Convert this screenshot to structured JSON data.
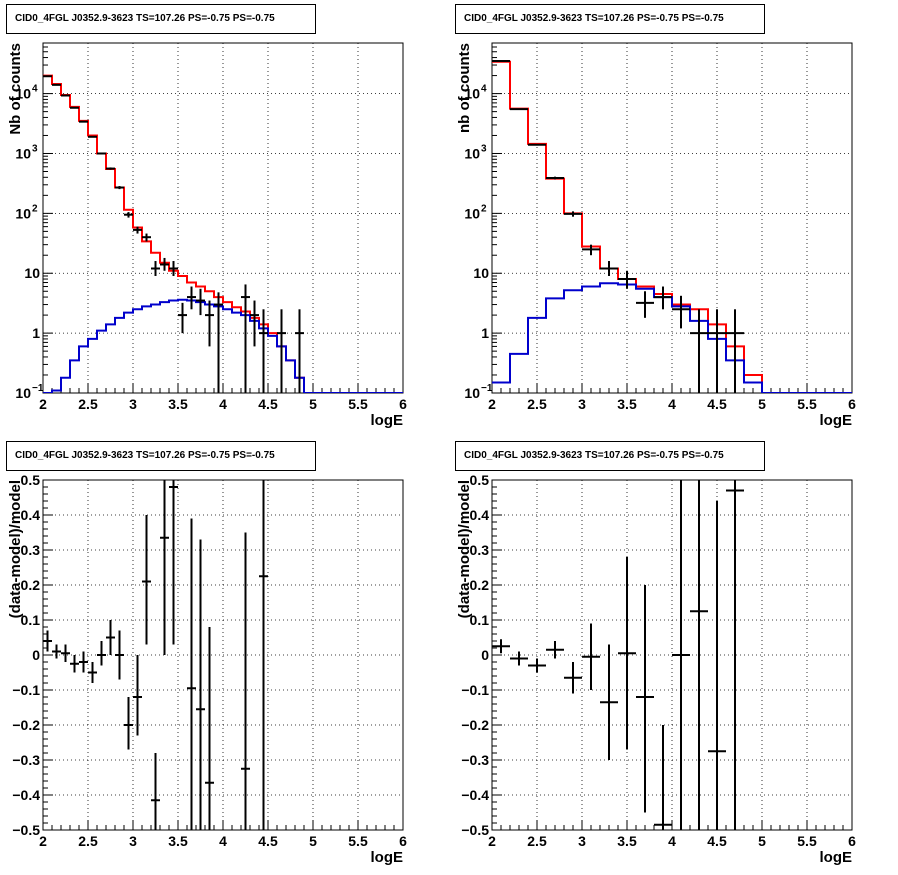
{
  "chart_data": [
    {
      "type": "line",
      "title": "CID0_4FGL J0352.9-3623 TS=107.26 PS=-0.75 PS=-0.75",
      "xlabel": "logE",
      "ylabel": "Nb of counts",
      "xlim": [
        2,
        6
      ],
      "ylim": [
        0.1,
        70000
      ],
      "yscale": "log",
      "grid": true,
      "x_ticks": [
        "2",
        "2.5",
        "3",
        "3.5",
        "4",
        "4.5",
        "5",
        "5.5",
        "6"
      ],
      "y_ticks": [
        {
          "value": 0.1,
          "label": "10",
          "exp": "−1"
        },
        {
          "value": 1,
          "label": "1",
          "exp": ""
        },
        {
          "value": 10,
          "label": "10",
          "exp": ""
        },
        {
          "value": 100,
          "label": "10",
          "exp": "2"
        },
        {
          "value": 1000,
          "label": "10",
          "exp": "3"
        },
        {
          "value": 10000,
          "label": "10",
          "exp": "4"
        }
      ],
      "bin_edges": [
        2.0,
        2.1,
        2.2,
        2.3,
        2.4,
        2.5,
        2.6,
        2.7,
        2.8,
        2.9,
        3.0,
        3.1,
        3.2,
        3.3,
        3.4,
        3.5,
        3.6,
        3.7,
        3.8,
        3.9,
        4.0,
        4.1,
        4.2,
        4.3,
        4.4,
        4.5,
        4.6,
        4.7,
        4.8,
        4.9,
        5.0,
        5.1,
        5.2,
        5.3,
        5.4,
        5.5,
        5.6,
        5.7,
        5.8,
        5.9,
        6.0
      ],
      "series": [
        {
          "color": "#ff0000",
          "style": "step",
          "values": [
            20000,
            14500,
            9500,
            6000,
            3500,
            2000,
            1000,
            550,
            270,
            115,
            58,
            34,
            22,
            15,
            11,
            9,
            7,
            6,
            5,
            4,
            3.3,
            2.7,
            2.3,
            1.8,
            1.4,
            1.0,
            0.6,
            0.35,
            0.18,
            0.1,
            0.09,
            0.09,
            0.09,
            0.09,
            0.09,
            0.09,
            0.09,
            0.09,
            0.09,
            0.09
          ]
        },
        {
          "color": "#0000cc",
          "style": "step",
          "values": [
            0.07,
            0.11,
            0.18,
            0.35,
            0.6,
            0.8,
            1.1,
            1.4,
            1.8,
            2.2,
            2.5,
            2.8,
            3.0,
            3.3,
            3.5,
            3.6,
            3.5,
            3.3,
            3.0,
            2.8,
            2.5,
            2.2,
            2.0,
            1.6,
            1.2,
            0.9,
            0.6,
            0.35,
            0.18,
            0.1,
            0.09,
            0.09,
            0.09,
            0.09,
            0.09,
            0.09,
            0.09,
            0.09,
            0.09,
            0.09
          ]
        }
      ],
      "points": [
        {
          "x": 2.05,
          "y": 19500,
          "lo": 19300,
          "hi": 19700
        },
        {
          "x": 2.15,
          "y": 14000,
          "lo": 13850,
          "hi": 14150
        },
        {
          "x": 2.25,
          "y": 9300,
          "lo": 9200,
          "hi": 9400
        },
        {
          "x": 2.35,
          "y": 5800,
          "lo": 5720,
          "hi": 5880
        },
        {
          "x": 2.45,
          "y": 3400,
          "lo": 3340,
          "hi": 3460
        },
        {
          "x": 2.55,
          "y": 1900,
          "lo": 1860,
          "hi": 1940
        },
        {
          "x": 2.65,
          "y": 1000,
          "lo": 970,
          "hi": 1030
        },
        {
          "x": 2.75,
          "y": 560,
          "lo": 535,
          "hi": 585
        },
        {
          "x": 2.85,
          "y": 270,
          "lo": 254,
          "hi": 286
        },
        {
          "x": 2.95,
          "y": 95,
          "lo": 85,
          "hi": 105
        },
        {
          "x": 3.05,
          "y": 53,
          "lo": 46,
          "hi": 60
        },
        {
          "x": 3.15,
          "y": 40,
          "lo": 34,
          "hi": 46
        },
        {
          "x": 3.25,
          "y": 12,
          "lo": 9,
          "hi": 16
        },
        {
          "x": 3.35,
          "y": 14,
          "lo": 11,
          "hi": 18
        },
        {
          "x": 3.45,
          "y": 12,
          "lo": 9,
          "hi": 16
        },
        {
          "x": 3.55,
          "y": 2,
          "lo": 1,
          "hi": 3.2
        },
        {
          "x": 3.65,
          "y": 4,
          "lo": 2.5,
          "hi": 6
        },
        {
          "x": 3.75,
          "y": 3.5,
          "lo": 2,
          "hi": 5.5
        },
        {
          "x": 3.85,
          "y": 2,
          "lo": 0.6,
          "hi": 3.5
        },
        {
          "x": 3.95,
          "y": 3,
          "lo": 0.1,
          "hi": 4.8
        },
        {
          "x": 4.25,
          "y": 4,
          "lo": 0.1,
          "hi": 6.5
        },
        {
          "x": 4.35,
          "y": 2,
          "lo": 0.6,
          "hi": 3.5
        },
        {
          "x": 4.45,
          "y": 1,
          "lo": 0.1,
          "hi": 2.5
        },
        {
          "x": 4.65,
          "y": 1,
          "lo": 0.1,
          "hi": 2.5
        },
        {
          "x": 4.85,
          "y": 1,
          "lo": 0.1,
          "hi": 2.5
        }
      ],
      "point_xerr": 0.05
    },
    {
      "type": "line",
      "title": "CID0_4FGL J0352.9-3623 TS=107.26 PS=-0.75 PS=-0.75",
      "xlabel": "logE",
      "ylabel": "nb of counts",
      "xlim": [
        2,
        6
      ],
      "ylim": [
        0.1,
        70000
      ],
      "yscale": "log",
      "grid": true,
      "x_ticks": [
        "2",
        "2.5",
        "3",
        "3.5",
        "4",
        "4.5",
        "5",
        "5.5",
        "6"
      ],
      "y_ticks": [
        {
          "value": 0.1,
          "label": "10",
          "exp": "−1"
        },
        {
          "value": 1,
          "label": "1",
          "exp": ""
        },
        {
          "value": 10,
          "label": "10",
          "exp": ""
        },
        {
          "value": 100,
          "label": "10",
          "exp": "2"
        },
        {
          "value": 1000,
          "label": "10",
          "exp": "3"
        },
        {
          "value": 10000,
          "label": "10",
          "exp": "4"
        }
      ],
      "bin_edges": [
        2.0,
        2.2,
        2.4,
        2.6,
        2.8,
        3.0,
        3.2,
        3.4,
        3.6,
        3.8,
        4.0,
        4.2,
        4.4,
        4.6,
        4.8,
        5.0,
        5.2,
        5.4,
        5.6,
        5.8,
        6.0
      ],
      "series": [
        {
          "color": "#ff0000",
          "style": "step",
          "values": [
            34000,
            5600,
            1450,
            380,
            100,
            28,
            12,
            8,
            6,
            4.5,
            3,
            2.5,
            1.4,
            0.6,
            0.2,
            0.1,
            0.1,
            0.1,
            0.1,
            0.1
          ]
        },
        {
          "color": "#0000cc",
          "style": "step",
          "values": [
            0.15,
            0.45,
            1.8,
            3.8,
            5.2,
            6,
            6.8,
            6.5,
            5.5,
            4,
            2.8,
            1.6,
            0.8,
            0.35,
            0.15,
            0.1,
            0.1,
            0.1,
            0.1,
            0.1
          ]
        }
      ],
      "points": [
        {
          "x": 2.1,
          "y": 35000,
          "lo": 34800,
          "hi": 35200
        },
        {
          "x": 2.3,
          "y": 5500,
          "lo": 5420,
          "hi": 5580
        },
        {
          "x": 2.5,
          "y": 1400,
          "lo": 1360,
          "hi": 1440
        },
        {
          "x": 2.7,
          "y": 390,
          "lo": 370,
          "hi": 410
        },
        {
          "x": 2.9,
          "y": 98,
          "lo": 88,
          "hi": 108
        },
        {
          "x": 3.1,
          "y": 25,
          "lo": 20,
          "hi": 30
        },
        {
          "x": 3.3,
          "y": 12,
          "lo": 9,
          "hi": 16
        },
        {
          "x": 3.5,
          "y": 8,
          "lo": 5.5,
          "hi": 11
        },
        {
          "x": 3.7,
          "y": 3.2,
          "lo": 1.8,
          "hi": 5
        },
        {
          "x": 3.9,
          "y": 4,
          "lo": 2.5,
          "hi": 6
        },
        {
          "x": 4.1,
          "y": 2.5,
          "lo": 1.2,
          "hi": 4.2
        },
        {
          "x": 4.3,
          "y": 1,
          "lo": 0.1,
          "hi": 2.5
        },
        {
          "x": 4.5,
          "y": 1,
          "lo": 0.1,
          "hi": 2.5
        },
        {
          "x": 4.7,
          "y": 1,
          "lo": 0.1,
          "hi": 2.5
        }
      ],
      "point_xerr": 0.1
    },
    {
      "type": "scatter",
      "title": "CID0_4FGL J0352.9-3623 TS=107.26 PS=-0.75 PS=-0.75",
      "xlabel": "logE",
      "ylabel": "(data-model)/model",
      "xlim": [
        2,
        6
      ],
      "ylim": [
        -0.5,
        0.5
      ],
      "yscale": "linear",
      "grid": true,
      "x_ticks": [
        "2",
        "2.5",
        "3",
        "3.5",
        "4",
        "4.5",
        "5",
        "5.5",
        "6"
      ],
      "y_ticks": [
        {
          "value": -0.5,
          "label": "−0.5"
        },
        {
          "value": -0.4,
          "label": "−0.4"
        },
        {
          "value": -0.3,
          "label": "−0.3"
        },
        {
          "value": -0.2,
          "label": "−0.2"
        },
        {
          "value": -0.1,
          "label": "−0.1"
        },
        {
          "value": 0,
          "label": "0"
        },
        {
          "value": 0.1,
          "label": "0.1"
        },
        {
          "value": 0.2,
          "label": "0.2"
        },
        {
          "value": 0.3,
          "label": "0.3"
        },
        {
          "value": 0.4,
          "label": "0.4"
        },
        {
          "value": 0.5,
          "label": "0.5"
        }
      ],
      "points": [
        {
          "x": 2.05,
          "y": 0.04,
          "lo": 0.01,
          "hi": 0.07
        },
        {
          "x": 2.15,
          "y": 0.01,
          "lo": -0.01,
          "hi": 0.03
        },
        {
          "x": 2.25,
          "y": 0.005,
          "lo": -0.02,
          "hi": 0.03
        },
        {
          "x": 2.35,
          "y": -0.025,
          "lo": -0.05,
          "hi": 0.0
        },
        {
          "x": 2.45,
          "y": -0.02,
          "lo": -0.05,
          "hi": 0.01
        },
        {
          "x": 2.55,
          "y": -0.05,
          "lo": -0.08,
          "hi": -0.02
        },
        {
          "x": 2.65,
          "y": 0.0,
          "lo": -0.03,
          "hi": 0.04
        },
        {
          "x": 2.75,
          "y": 0.05,
          "lo": 0.0,
          "hi": 0.1
        },
        {
          "x": 2.85,
          "y": 0.0,
          "lo": -0.07,
          "hi": 0.07
        },
        {
          "x": 2.95,
          "y": -0.2,
          "lo": -0.27,
          "hi": -0.12
        },
        {
          "x": 3.05,
          "y": -0.12,
          "lo": -0.23,
          "hi": 0.0
        },
        {
          "x": 3.15,
          "y": 0.21,
          "lo": 0.03,
          "hi": 0.4
        },
        {
          "x": 3.25,
          "y": -0.415,
          "lo": -0.5,
          "hi": -0.28
        },
        {
          "x": 3.35,
          "y": 0.335,
          "lo": 0.0,
          "hi": 0.5
        },
        {
          "x": 3.45,
          "y": 0.48,
          "lo": 0.03,
          "hi": 0.5
        },
        {
          "x": 3.65,
          "y": -0.095,
          "lo": -0.5,
          "hi": 0.39
        },
        {
          "x": 3.75,
          "y": -0.155,
          "lo": -0.5,
          "hi": 0.33
        },
        {
          "x": 3.85,
          "y": -0.365,
          "lo": -0.5,
          "hi": 0.08
        },
        {
          "x": 4.25,
          "y": -0.325,
          "lo": -0.5,
          "hi": 0.35
        },
        {
          "x": 4.45,
          "y": 0.225,
          "lo": -0.5,
          "hi": 0.5
        }
      ],
      "point_xerr": 0.05
    },
    {
      "type": "scatter",
      "title": "CID0_4FGL J0352.9-3623 TS=107.26 PS=-0.75 PS=-0.75",
      "xlabel": "logE",
      "ylabel": "(data-model)/model",
      "xlim": [
        2,
        6
      ],
      "ylim": [
        -0.5,
        0.5
      ],
      "yscale": "linear",
      "grid": true,
      "x_ticks": [
        "2",
        "2.5",
        "3",
        "3.5",
        "4",
        "4.5",
        "5",
        "5.5",
        "6"
      ],
      "y_ticks": [
        {
          "value": -0.5,
          "label": "−0.5"
        },
        {
          "value": -0.4,
          "label": "−0.4"
        },
        {
          "value": -0.3,
          "label": "−0.3"
        },
        {
          "value": -0.2,
          "label": "−0.2"
        },
        {
          "value": -0.1,
          "label": "−0.1"
        },
        {
          "value": 0,
          "label": "0"
        },
        {
          "value": 0.1,
          "label": "0.1"
        },
        {
          "value": 0.2,
          "label": "0.2"
        },
        {
          "value": 0.3,
          "label": "0.3"
        },
        {
          "value": 0.4,
          "label": "0.4"
        },
        {
          "value": 0.5,
          "label": "0.5"
        }
      ],
      "points": [
        {
          "x": 2.1,
          "y": 0.025,
          "lo": 0.005,
          "hi": 0.045
        },
        {
          "x": 2.3,
          "y": -0.01,
          "lo": -0.03,
          "hi": 0.01
        },
        {
          "x": 2.5,
          "y": -0.03,
          "lo": -0.05,
          "hi": -0.01
        },
        {
          "x": 2.7,
          "y": 0.015,
          "lo": -0.01,
          "hi": 0.04
        },
        {
          "x": 2.9,
          "y": -0.065,
          "lo": -0.11,
          "hi": -0.02
        },
        {
          "x": 3.1,
          "y": -0.005,
          "lo": -0.1,
          "hi": 0.09
        },
        {
          "x": 3.3,
          "y": -0.135,
          "lo": -0.3,
          "hi": 0.03
        },
        {
          "x": 3.5,
          "y": 0.005,
          "lo": -0.27,
          "hi": 0.28
        },
        {
          "x": 3.7,
          "y": -0.12,
          "lo": -0.45,
          "hi": 0.2
        },
        {
          "x": 3.9,
          "y": -0.485,
          "lo": -0.5,
          "hi": -0.2
        },
        {
          "x": 4.1,
          "y": 0.0,
          "lo": -0.5,
          "hi": 0.5
        },
        {
          "x": 4.3,
          "y": 0.125,
          "lo": -0.5,
          "hi": 0.5
        },
        {
          "x": 4.5,
          "y": -0.275,
          "lo": -0.5,
          "hi": 0.44
        },
        {
          "x": 4.7,
          "y": 0.47,
          "lo": -0.5,
          "hi": 0.5
        }
      ],
      "point_xerr": 0.1
    }
  ]
}
